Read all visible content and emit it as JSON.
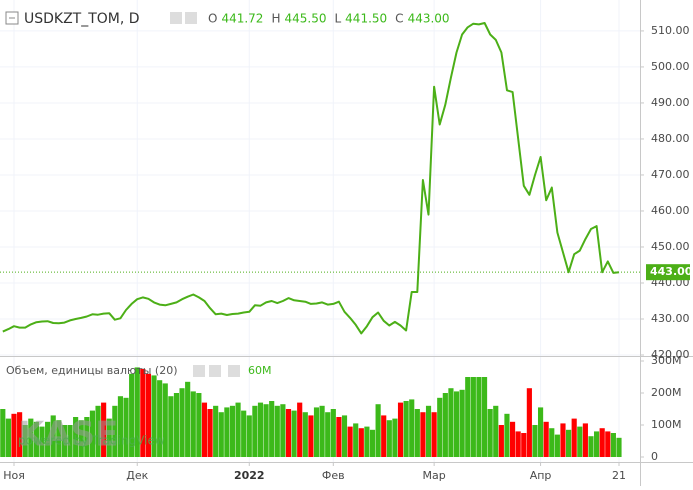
{
  "chart_data": [
    {
      "type": "line",
      "title": "USDKZT_TOM, D",
      "ohlc_labels": [
        "O",
        "H",
        "L",
        "C"
      ],
      "ohlc_values": [
        {
          "value": 441.72,
          "label": "441.72"
        },
        {
          "value": 445.5,
          "label": "445.50"
        },
        {
          "value": 441.5,
          "label": "441.50"
        },
        {
          "value": 443,
          "label": "443.00"
        }
      ],
      "last_price": {
        "value": 443,
        "label": "443.00"
      },
      "color": "#4caf17",
      "grid": true,
      "xlim": [
        -0.5,
        113.75
      ],
      "xticks": [
        {
          "value": 2,
          "label": "Ноя"
        },
        {
          "value": 24,
          "label": "Дек"
        },
        {
          "value": 44,
          "label": "2022"
        },
        {
          "value": 59,
          "label": "Фев"
        },
        {
          "value": 77,
          "label": "Мар"
        },
        {
          "value": 96,
          "label": "Апр"
        },
        {
          "value": 110,
          "label": "21"
        }
      ],
      "ylim": [
        420,
        517.2
      ],
      "yticks": [
        {
          "value": 420,
          "label": "420.00"
        },
        {
          "value": 430,
          "label": "430.00"
        },
        {
          "value": 440,
          "label": "440.00"
        },
        {
          "value": 450,
          "label": "450.00"
        },
        {
          "value": 460,
          "label": "460.00"
        },
        {
          "value": 470,
          "label": "470.00"
        },
        {
          "value": 480,
          "label": "480.00"
        },
        {
          "value": 490,
          "label": "490.00"
        },
        {
          "value": 500,
          "label": "500.00"
        },
        {
          "value": 510,
          "label": "510.00"
        }
      ],
      "watermark": "KASE",
      "credit": "powered by TradingView",
      "values": [
        426.5,
        427.2,
        428,
        427.6,
        427.6,
        428.5,
        429.1,
        429.3,
        429.4,
        428.9,
        428.8,
        429,
        429.6,
        430,
        430.3,
        430.7,
        431.3,
        431.2,
        431.5,
        431.6,
        429.8,
        430.2,
        432.5,
        434.2,
        435.5,
        436,
        435.6,
        434.6,
        434,
        433.8,
        434.2,
        434.6,
        435.5,
        436.2,
        436.8,
        436,
        435,
        433,
        431.3,
        431.5,
        431.1,
        431.4,
        431.5,
        431.8,
        432,
        433.8,
        433.7,
        434.6,
        435,
        434.4,
        435,
        435.8,
        435.2,
        435,
        434.8,
        434.2,
        434.3,
        434.6,
        434,
        434.2,
        434.8,
        432,
        430.3,
        428.4,
        426,
        428,
        430.5,
        431.8,
        429.5,
        428.2,
        429.2,
        428.2,
        426.8,
        437.5,
        437.5,
        468.6,
        459,
        494.5,
        484,
        489.5,
        497,
        504,
        509,
        511,
        512,
        511.8,
        512.2,
        509,
        507.5,
        504,
        493.5,
        493,
        480,
        467,
        464.5,
        470,
        475,
        463,
        466.5,
        454,
        448.5,
        443,
        448,
        449,
        452.2,
        455,
        455.8,
        443,
        446,
        442.8,
        443
      ]
    },
    {
      "type": "bar",
      "title": "Объем, единицы валюты (20)",
      "current": {
        "value": 60,
        "label": "60M"
      },
      "ylim": [
        -15.6,
        309.4
      ],
      "yticks": [
        0,
        {
          "value": 100,
          "label": "100M"
        },
        {
          "value": 200,
          "label": "200M"
        },
        {
          "value": 300,
          "label": "300M"
        }
      ],
      "values": [
        150,
        120,
        135,
        140,
        100,
        120,
        110,
        95,
        110,
        130,
        115,
        100,
        100,
        125,
        115,
        125,
        145,
        160,
        170,
        120,
        160,
        190,
        185,
        260,
        280,
        275,
        260,
        255,
        240,
        230,
        190,
        200,
        215,
        235,
        205,
        200,
        170,
        150,
        160,
        140,
        155,
        160,
        170,
        145,
        130,
        160,
        170,
        165,
        175,
        160,
        165,
        150,
        145,
        170,
        140,
        130,
        155,
        160,
        140,
        150,
        125,
        130,
        95,
        105,
        90,
        95,
        85,
        165,
        130,
        115,
        120,
        170,
        175,
        180,
        150,
        140,
        160,
        140,
        185,
        200,
        215,
        205,
        210,
        250,
        250,
        250,
        250,
        150,
        160,
        100,
        135,
        110,
        80,
        75,
        215,
        100,
        155,
        110,
        90,
        70,
        105,
        85,
        120,
        95,
        105,
        65,
        80,
        90,
        80,
        75,
        60
      ],
      "colors": [
        "#3cb91a",
        "#3cb91a",
        "#ff0000",
        "#ff0000",
        "#3cb91a",
        "#3cb91a",
        "#3cb91a",
        "#3cb91a",
        "#3cb91a",
        "#3cb91a",
        "#3cb91a",
        "#3cb91a",
        "#3cb91a",
        "#3cb91a",
        "#3cb91a",
        "#3cb91a",
        "#3cb91a",
        "#3cb91a",
        "#ff0000",
        "#3cb91a",
        "#3cb91a",
        "#3cb91a",
        "#3cb91a",
        "#3cb91a",
        "#3cb91a",
        "#ff0000",
        "#ff0000",
        "#3cb91a",
        "#3cb91a",
        "#3cb91a",
        "#3cb91a",
        "#3cb91a",
        "#3cb91a",
        "#3cb91a",
        "#3cb91a",
        "#3cb91a",
        "#ff0000",
        "#ff0000",
        "#3cb91a",
        "#3cb91a",
        "#3cb91a",
        "#3cb91a",
        "#3cb91a",
        "#3cb91a",
        "#3cb91a",
        "#3cb91a",
        "#3cb91a",
        "#3cb91a",
        "#3cb91a",
        "#3cb91a",
        "#3cb91a",
        "#ff0000",
        "#3cb91a",
        "#ff0000",
        "#3cb91a",
        "#ff0000",
        "#3cb91a",
        "#3cb91a",
        "#3cb91a",
        "#3cb91a",
        "#ff0000",
        "#3cb91a",
        "#ff0000",
        "#3cb91a",
        "#ff0000",
        "#3cb91a",
        "#3cb91a",
        "#3cb91a",
        "#ff0000",
        "#3cb91a",
        "#3cb91a",
        "#ff0000",
        "#3cb91a",
        "#3cb91a",
        "#3cb91a",
        "#ff0000",
        "#3cb91a",
        "#ff0000",
        "#3cb91a",
        "#3cb91a",
        "#3cb91a",
        "#3cb91a",
        "#3cb91a",
        "#3cb91a",
        "#3cb91a",
        "#3cb91a",
        "#3cb91a",
        "#3cb91a",
        "#3cb91a",
        "#ff0000",
        "#3cb91a",
        "#ff0000",
        "#ff0000",
        "#ff0000",
        "#ff0000",
        "#3cb91a",
        "#3cb91a",
        "#ff0000",
        "#3cb91a",
        "#3cb91a",
        "#ff0000",
        "#3cb91a",
        "#ff0000",
        "#3cb91a",
        "#ff0000",
        "#3cb91a",
        "#3cb91a",
        "#ff0000",
        "#ff0000",
        "#3cb91a",
        "#3cb91a"
      ]
    }
  ]
}
